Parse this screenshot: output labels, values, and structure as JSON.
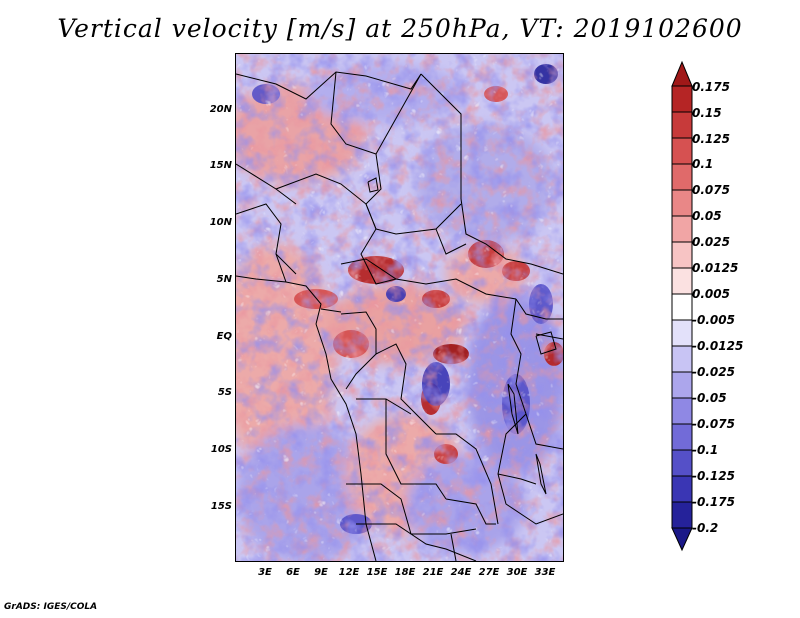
{
  "title": "Vertical velocity [m/s] at 250hPa, VT: 2019102600",
  "map": {
    "lat_labels": [
      "20N",
      "15N",
      "10N",
      "5N",
      "EQ",
      "5S",
      "10S",
      "15S"
    ],
    "lon_labels": [
      "3E",
      "6E",
      "9E",
      "12E",
      "15E",
      "18E",
      "21E",
      "24E",
      "27E",
      "30E",
      "33E"
    ],
    "extent": {
      "lon_min": 0,
      "lon_max": 35,
      "lat_min": -20,
      "lat_max": 25
    },
    "field": "vertical-velocity",
    "level": "250hPa"
  },
  "colorbar": {
    "labels": [
      "0.175",
      "0.15",
      "0.125",
      "0.1",
      "0.075",
      "0.05",
      "0.025",
      "0.0125",
      "0.005",
      "-0.005",
      "-0.0125",
      "-0.025",
      "-0.05",
      "-0.075",
      "-0.1",
      "-0.125",
      "-0.175",
      "-0.2"
    ],
    "colors": [
      "#a01818",
      "#b52525",
      "#c73a3a",
      "#d65151",
      "#e06a6a",
      "#e98787",
      "#f1a5a5",
      "#f7c4c4",
      "#fbe1e1",
      "#ffffff",
      "#e3e1fa",
      "#c8c4f4",
      "#aca6ec",
      "#8f88e4",
      "#726bd8",
      "#5550c8",
      "#3a36b4",
      "#25229a",
      "#1a1888"
    ]
  },
  "footer": "GrADS: IGES/COLA"
}
